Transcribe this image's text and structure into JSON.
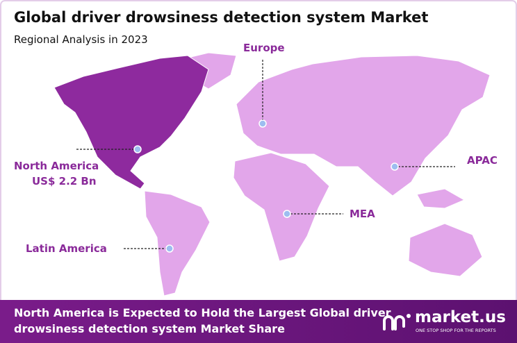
{
  "header": {
    "title": "Global driver drowsiness detection system Market",
    "subtitle": "Regional Analysis in 2023"
  },
  "regions": [
    {
      "name": "North America",
      "value": "US$ 2.2 Bn"
    },
    {
      "name": "Europe"
    },
    {
      "name": "APAC"
    },
    {
      "name": "MEA"
    },
    {
      "name": "Latin America"
    }
  ],
  "footer": {
    "lines": [
      "North America is Expected to Hold the Largest Global driver",
      "drowsiness detection system Market Share"
    ]
  },
  "brand": {
    "name": "market.us",
    "tagline": "ONE STOP SHOP FOR THE REPORTS"
  }
}
